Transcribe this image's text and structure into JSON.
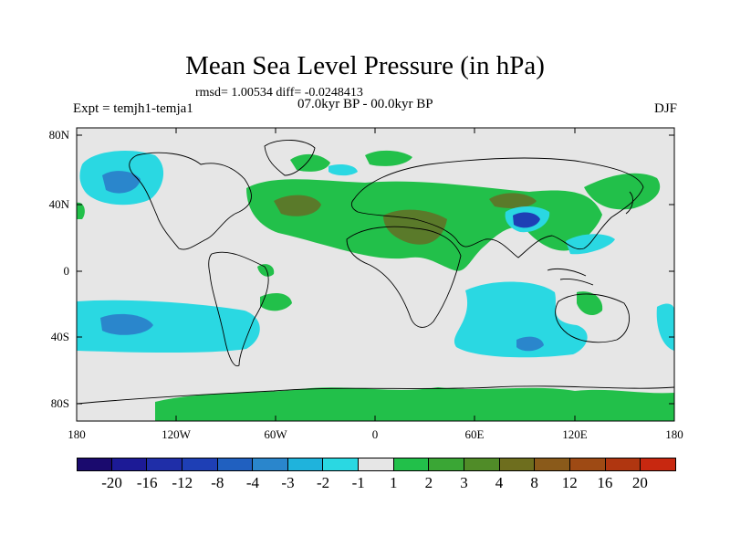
{
  "title": "Mean Sea Level Pressure (in hPa)",
  "stats": "rmsd= 1.00534 diff= -0.0248413",
  "period": "07.0kyr BP - 00.0kyr BP",
  "experiment": "Expt = temjh1-temja1",
  "season": "DJF",
  "lat_labels": [
    "80N",
    "40N",
    "0",
    "40S",
    "80S"
  ],
  "lon_labels": [
    "180",
    "120W",
    "60W",
    "0",
    "60E",
    "120E",
    "180"
  ],
  "colorbar": {
    "labels": [
      "-20",
      "-16",
      "-12",
      "-8",
      "-4",
      "-3",
      "-2",
      "-1",
      "1",
      "2",
      "3",
      "4",
      "8",
      "12",
      "16",
      "20"
    ],
    "colors": [
      "#1a0a6e",
      "#1c1a96",
      "#1f2ea8",
      "#1e3fb5",
      "#2060c0",
      "#2a86cc",
      "#1fb3dc",
      "#2ad8e2",
      "#e6e6e6",
      "#22c04a",
      "#3aa635",
      "#508c28",
      "#6e6e1e",
      "#8a5a1a",
      "#9e4a14",
      "#b03610",
      "#c82810"
    ]
  },
  "colors": {
    "background": "#e6e6e6",
    "green_light": "#22c04a",
    "green_olive": "#5a7a2a",
    "cyan": "#2ad8e2",
    "blue_mid": "#2a86cc",
    "blue_dark": "#1e3fb5",
    "coast": "#000000"
  }
}
